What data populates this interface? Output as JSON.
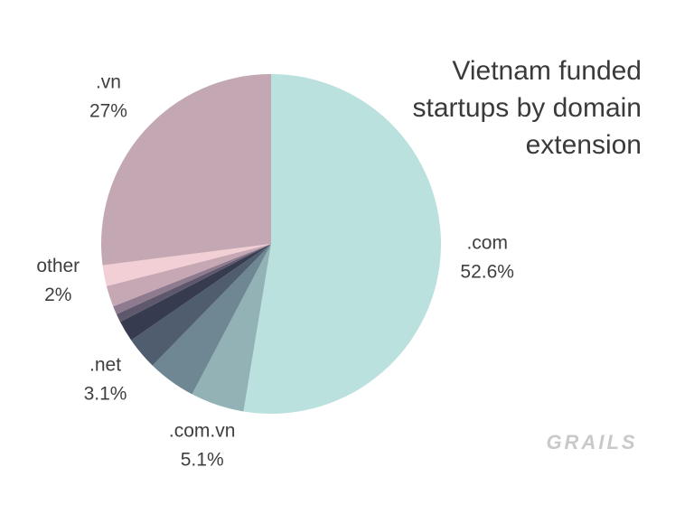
{
  "chart_data": {
    "type": "pie",
    "title": "Vietnam funded startups by domain extension",
    "categories": [
      ".com",
      ".com.vn",
      null,
      ".net",
      null,
      null,
      null,
      null,
      "other",
      ".vn"
    ],
    "values": [
      52.6,
      5.1,
      4.6,
      3.1,
      2.0,
      0.8,
      0.8,
      2.0,
      2,
      27
    ],
    "value_labels": [
      "52.6%",
      "5.1%",
      null,
      "3.1%",
      null,
      null,
      null,
      null,
      "2%",
      "27%"
    ],
    "colors": [
      "#bbe1de",
      "#92b2b5",
      "#6e8793",
      "#4f5d6e",
      "#363b50",
      "#5f576b",
      "#8e7b8f",
      "#c6a8b5",
      "#f2cfd5",
      "#c3a7b2"
    ],
    "logo": "GRAILS"
  }
}
